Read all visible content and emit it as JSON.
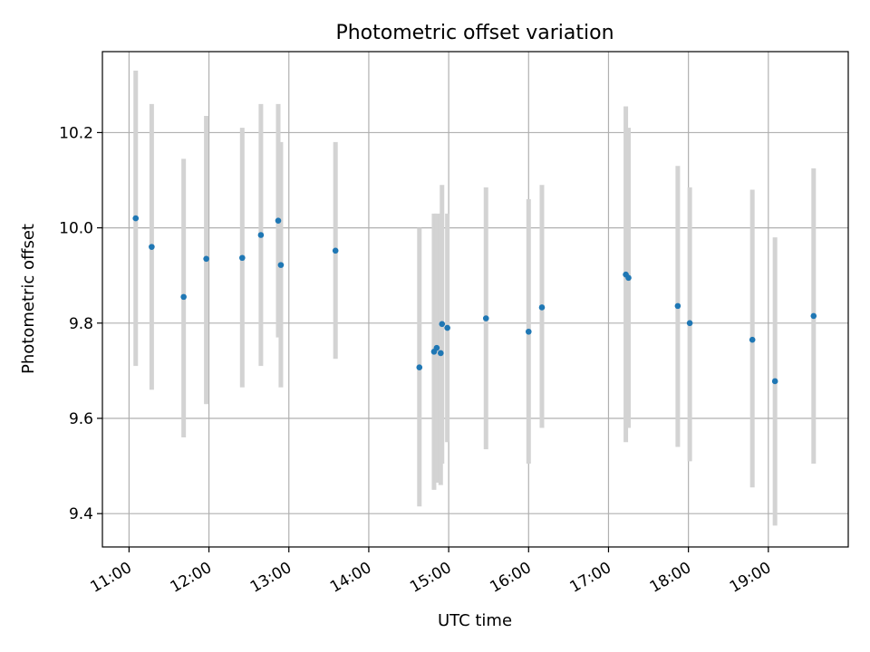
{
  "chart_data": {
    "type": "scatter",
    "title": "Photometric offset variation",
    "xlabel": "UTC time",
    "ylabel": "Photometric offset",
    "xlim": [
      "10:40",
      "20:00"
    ],
    "ylim": [
      9.33,
      10.37
    ],
    "x_ticks": [
      "11:00",
      "12:00",
      "13:00",
      "14:00",
      "15:00",
      "16:00",
      "17:00",
      "18:00",
      "19:00"
    ],
    "y_ticks": [
      "9.4",
      "9.6",
      "9.8",
      "10.0",
      "10.2"
    ],
    "y_tick_values": [
      9.4,
      9.6,
      9.8,
      10.0,
      10.2
    ],
    "grid": true,
    "legend": "none",
    "point_color": "#1f77b4",
    "errorbar_color": "#d3d3d3",
    "series": [
      {
        "points": [
          {
            "x": "11:05",
            "y": 10.02,
            "ylo": 9.71,
            "yhi": 10.33
          },
          {
            "x": "11:17",
            "y": 9.96,
            "ylo": 9.66,
            "yhi": 10.26
          },
          {
            "x": "11:41",
            "y": 9.855,
            "ylo": 9.56,
            "yhi": 10.145
          },
          {
            "x": "11:58",
            "y": 9.935,
            "ylo": 9.63,
            "yhi": 10.235
          },
          {
            "x": "12:25",
            "y": 9.937,
            "ylo": 9.665,
            "yhi": 10.21
          },
          {
            "x": "12:39",
            "y": 9.985,
            "ylo": 9.71,
            "yhi": 10.26
          },
          {
            "x": "12:52",
            "y": 10.015,
            "ylo": 9.77,
            "yhi": 10.26
          },
          {
            "x": "12:54",
            "y": 9.922,
            "ylo": 9.665,
            "yhi": 10.18
          },
          {
            "x": "13:35",
            "y": 9.952,
            "ylo": 9.725,
            "yhi": 10.18
          },
          {
            "x": "14:38",
            "y": 9.707,
            "ylo": 9.415,
            "yhi": 10.0
          },
          {
            "x": "14:49",
            "y": 9.74,
            "ylo": 9.45,
            "yhi": 10.03
          },
          {
            "x": "14:51",
            "y": 9.748,
            "ylo": 9.465,
            "yhi": 10.03
          },
          {
            "x": "14:54",
            "y": 9.737,
            "ylo": 9.46,
            "yhi": 10.03
          },
          {
            "x": "14:55",
            "y": 9.798,
            "ylo": 9.505,
            "yhi": 10.09
          },
          {
            "x": "14:59",
            "y": 9.79,
            "ylo": 9.55,
            "yhi": 10.03
          },
          {
            "x": "15:28",
            "y": 9.81,
            "ylo": 9.535,
            "yhi": 10.085
          },
          {
            "x": "16:00",
            "y": 9.782,
            "ylo": 9.505,
            "yhi": 10.06
          },
          {
            "x": "16:10",
            "y": 9.833,
            "ylo": 9.58,
            "yhi": 10.09
          },
          {
            "x": "17:13",
            "y": 9.902,
            "ylo": 9.55,
            "yhi": 10.255
          },
          {
            "x": "17:15",
            "y": 9.895,
            "ylo": 9.58,
            "yhi": 10.21
          },
          {
            "x": "17:52",
            "y": 9.836,
            "ylo": 9.54,
            "yhi": 10.13
          },
          {
            "x": "18:01",
            "y": 9.8,
            "ylo": 9.51,
            "yhi": 10.085
          },
          {
            "x": "18:48",
            "y": 9.765,
            "ylo": 9.455,
            "yhi": 10.08
          },
          {
            "x": "19:05",
            "y": 9.678,
            "ylo": 9.375,
            "yhi": 9.98
          },
          {
            "x": "19:34",
            "y": 9.815,
            "ylo": 9.505,
            "yhi": 10.125
          }
        ]
      }
    ]
  }
}
